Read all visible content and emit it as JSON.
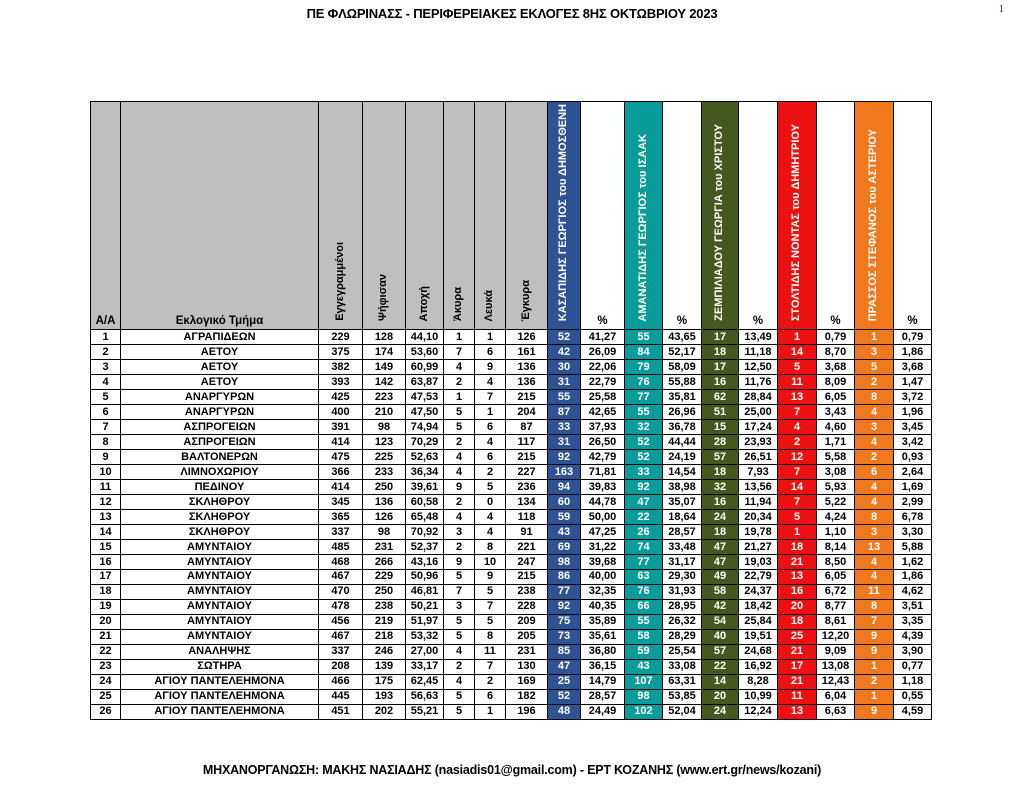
{
  "page": {
    "title": "ΠΕ ΦΛΩΡΙΝΑΣΣ - ΠΕΡΙΦΕΡΕΙΑΚΕΣ ΕΚΛΟΓΕΣ 8ΗΣ ΟΚΤΩΒΡΙΟΥ 2023",
    "page_number": "1",
    "footer": "ΜΗΧΑΝΟΡΓΑΝΩΣΗ: ΜΑΚΗΣ ΝΑΣΙΑΔΗΣ (nasiadis01@gmail.com) - ΕΡΤ ΚΟΖΑΝΗΣ (www.ert.gr/news/kozani)"
  },
  "table": {
    "header_bg": "#BFBFBF",
    "columns": {
      "aa": "Α/Α",
      "station": "Εκλογικό Τμήμα",
      "stats": [
        "Εγγεγραμμένοι",
        "Ψήφισαν",
        "Αποχή",
        "Άκυρα",
        "Λευκά",
        "Έγκυρα"
      ],
      "percent": "%"
    },
    "candidates": [
      {
        "name": "ΚΑΣΑΠΙΔΗΣ ΓΕΩΡΓΙΟΣ του ΔΗΜΟΣΘΕΝΗ",
        "color": "#2E5394"
      },
      {
        "name": "ΑΜΑΝΑΤΙΔΗΣ ΓΕΩΡΓΙΟΣ του ΙΣΑΑΚ",
        "color": "#0A9B9B"
      },
      {
        "name": "ΖΕΜΠΙΛΙΑΔΟΥ ΓΕΩΡΓΙΑ του ΧΡΙΣΤΟΥ",
        "color": "#45591E"
      },
      {
        "name": "ΣΤΟΛΤΙΔΗΣ ΝΟΝΤΑΣ του ΔΗΜΗΤΡΙΟΥ",
        "color": "#EE1111"
      },
      {
        "name": "ΠΡΑΣΣΟΣ ΣΤΕΦΑΝΟΣ του ΑΣΤΕΡΙΟΥ",
        "color": "#F0791E"
      }
    ],
    "rows": [
      [
        "1",
        "ΑΓΡΑΠΙΔΕΩΝ",
        "229",
        "128",
        "44,10",
        "1",
        "1",
        "126",
        "52",
        "41,27",
        "55",
        "43,65",
        "17",
        "13,49",
        "1",
        "0,79",
        "1",
        "0,79"
      ],
      [
        "2",
        "ΑΕΤΟΥ",
        "375",
        "174",
        "53,60",
        "7",
        "6",
        "161",
        "42",
        "26,09",
        "84",
        "52,17",
        "18",
        "11,18",
        "14",
        "8,70",
        "3",
        "1,86"
      ],
      [
        "3",
        "ΑΕΤΟΥ",
        "382",
        "149",
        "60,99",
        "4",
        "9",
        "136",
        "30",
        "22,06",
        "79",
        "58,09",
        "17",
        "12,50",
        "5",
        "3,68",
        "5",
        "3,68"
      ],
      [
        "4",
        "ΑΕΤΟΥ",
        "393",
        "142",
        "63,87",
        "2",
        "4",
        "136",
        "31",
        "22,79",
        "76",
        "55,88",
        "16",
        "11,76",
        "11",
        "8,09",
        "2",
        "1,47"
      ],
      [
        "5",
        "ΑΝΑΡΓΥΡΩΝ",
        "425",
        "223",
        "47,53",
        "1",
        "7",
        "215",
        "55",
        "25,58",
        "77",
        "35,81",
        "62",
        "28,84",
        "13",
        "6,05",
        "8",
        "3,72"
      ],
      [
        "6",
        "ΑΝΑΡΓΥΡΩΝ",
        "400",
        "210",
        "47,50",
        "5",
        "1",
        "204",
        "87",
        "42,65",
        "55",
        "26,96",
        "51",
        "25,00",
        "7",
        "3,43",
        "4",
        "1,96"
      ],
      [
        "7",
        "ΑΣΠΡΟΓΕΙΩΝ",
        "391",
        "98",
        "74,94",
        "5",
        "6",
        "87",
        "33",
        "37,93",
        "32",
        "36,78",
        "15",
        "17,24",
        "4",
        "4,60",
        "3",
        "3,45"
      ],
      [
        "8",
        "ΑΣΠΡΟΓΕΙΩΝ",
        "414",
        "123",
        "70,29",
        "2",
        "4",
        "117",
        "31",
        "26,50",
        "52",
        "44,44",
        "28",
        "23,93",
        "2",
        "1,71",
        "4",
        "3,42"
      ],
      [
        "9",
        "ΒΑΛΤΟΝΕΡΩΝ",
        "475",
        "225",
        "52,63",
        "4",
        "6",
        "215",
        "92",
        "42,79",
        "52",
        "24,19",
        "57",
        "26,51",
        "12",
        "5,58",
        "2",
        "0,93"
      ],
      [
        "10",
        "ΛΙΜΝΟΧΩΡΙΟΥ",
        "366",
        "233",
        "36,34",
        "4",
        "2",
        "227",
        "163",
        "71,81",
        "33",
        "14,54",
        "18",
        "7,93",
        "7",
        "3,08",
        "6",
        "2,64"
      ],
      [
        "11",
        "ΠΕΔΙΝΟΥ",
        "414",
        "250",
        "39,61",
        "9",
        "5",
        "236",
        "94",
        "39,83",
        "92",
        "38,98",
        "32",
        "13,56",
        "14",
        "5,93",
        "4",
        "1,69"
      ],
      [
        "12",
        "ΣΚΛΗΘΡΟΥ",
        "345",
        "136",
        "60,58",
        "2",
        "0",
        "134",
        "60",
        "44,78",
        "47",
        "35,07",
        "16",
        "11,94",
        "7",
        "5,22",
        "4",
        "2,99"
      ],
      [
        "13",
        "ΣΚΛΗΘΡΟΥ",
        "365",
        "126",
        "65,48",
        "4",
        "4",
        "118",
        "59",
        "50,00",
        "22",
        "18,64",
        "24",
        "20,34",
        "5",
        "4,24",
        "8",
        "6,78"
      ],
      [
        "14",
        "ΣΚΛΗΘΡΟΥ",
        "337",
        "98",
        "70,92",
        "3",
        "4",
        "91",
        "43",
        "47,25",
        "26",
        "28,57",
        "18",
        "19,78",
        "1",
        "1,10",
        "3",
        "3,30"
      ],
      [
        "15",
        "ΑΜΥΝΤΑΙΟΥ",
        "485",
        "231",
        "52,37",
        "2",
        "8",
        "221",
        "69",
        "31,22",
        "74",
        "33,48",
        "47",
        "21,27",
        "18",
        "8,14",
        "13",
        "5,88"
      ],
      [
        "16",
        "ΑΜΥΝΤΑΙΟΥ",
        "468",
        "266",
        "43,16",
        "9",
        "10",
        "247",
        "98",
        "39,68",
        "77",
        "31,17",
        "47",
        "19,03",
        "21",
        "8,50",
        "4",
        "1,62"
      ],
      [
        "17",
        "ΑΜΥΝΤΑΙΟΥ",
        "467",
        "229",
        "50,96",
        "5",
        "9",
        "215",
        "86",
        "40,00",
        "63",
        "29,30",
        "49",
        "22,79",
        "13",
        "6,05",
        "4",
        "1,86"
      ],
      [
        "18",
        "ΑΜΥΝΤΑΙΟΥ",
        "470",
        "250",
        "46,81",
        "7",
        "5",
        "238",
        "77",
        "32,35",
        "76",
        "31,93",
        "58",
        "24,37",
        "16",
        "6,72",
        "11",
        "4,62"
      ],
      [
        "19",
        "ΑΜΥΝΤΑΙΟΥ",
        "478",
        "238",
        "50,21",
        "3",
        "7",
        "228",
        "92",
        "40,35",
        "66",
        "28,95",
        "42",
        "18,42",
        "20",
        "8,77",
        "8",
        "3,51"
      ],
      [
        "20",
        "ΑΜΥΝΤΑΙΟΥ",
        "456",
        "219",
        "51,97",
        "5",
        "5",
        "209",
        "75",
        "35,89",
        "55",
        "26,32",
        "54",
        "25,84",
        "18",
        "8,61",
        "7",
        "3,35"
      ],
      [
        "21",
        "ΑΜΥΝΤΑΙΟΥ",
        "467",
        "218",
        "53,32",
        "5",
        "8",
        "205",
        "73",
        "35,61",
        "58",
        "28,29",
        "40",
        "19,51",
        "25",
        "12,20",
        "9",
        "4,39"
      ],
      [
        "22",
        "ΑΝΑΛΗΨΗΣ",
        "337",
        "246",
        "27,00",
        "4",
        "11",
        "231",
        "85",
        "36,80",
        "59",
        "25,54",
        "57",
        "24,68",
        "21",
        "9,09",
        "9",
        "3,90"
      ],
      [
        "23",
        "ΣΩΤΗΡΑ",
        "208",
        "139",
        "33,17",
        "2",
        "7",
        "130",
        "47",
        "36,15",
        "43",
        "33,08",
        "22",
        "16,92",
        "17",
        "13,08",
        "1",
        "0,77"
      ],
      [
        "24",
        "ΑΓΙΟΥ ΠΑΝΤΕΛΕΗΜΟΝΑ",
        "466",
        "175",
        "62,45",
        "4",
        "2",
        "169",
        "25",
        "14,79",
        "107",
        "63,31",
        "14",
        "8,28",
        "21",
        "12,43",
        "2",
        "1,18"
      ],
      [
        "25",
        "ΑΓΙΟΥ ΠΑΝΤΕΛΕΗΜΟΝΑ",
        "445",
        "193",
        "56,63",
        "5",
        "6",
        "182",
        "52",
        "28,57",
        "98",
        "53,85",
        "20",
        "10,99",
        "11",
        "6,04",
        "1",
        "0,55"
      ],
      [
        "26",
        "ΑΓΙΟΥ ΠΑΝΤΕΛΕΗΜΟΝΑ",
        "451",
        "202",
        "55,21",
        "5",
        "1",
        "196",
        "48",
        "24,49",
        "102",
        "52,04",
        "24",
        "12,24",
        "13",
        "6,63",
        "9",
        "4,59"
      ]
    ]
  }
}
